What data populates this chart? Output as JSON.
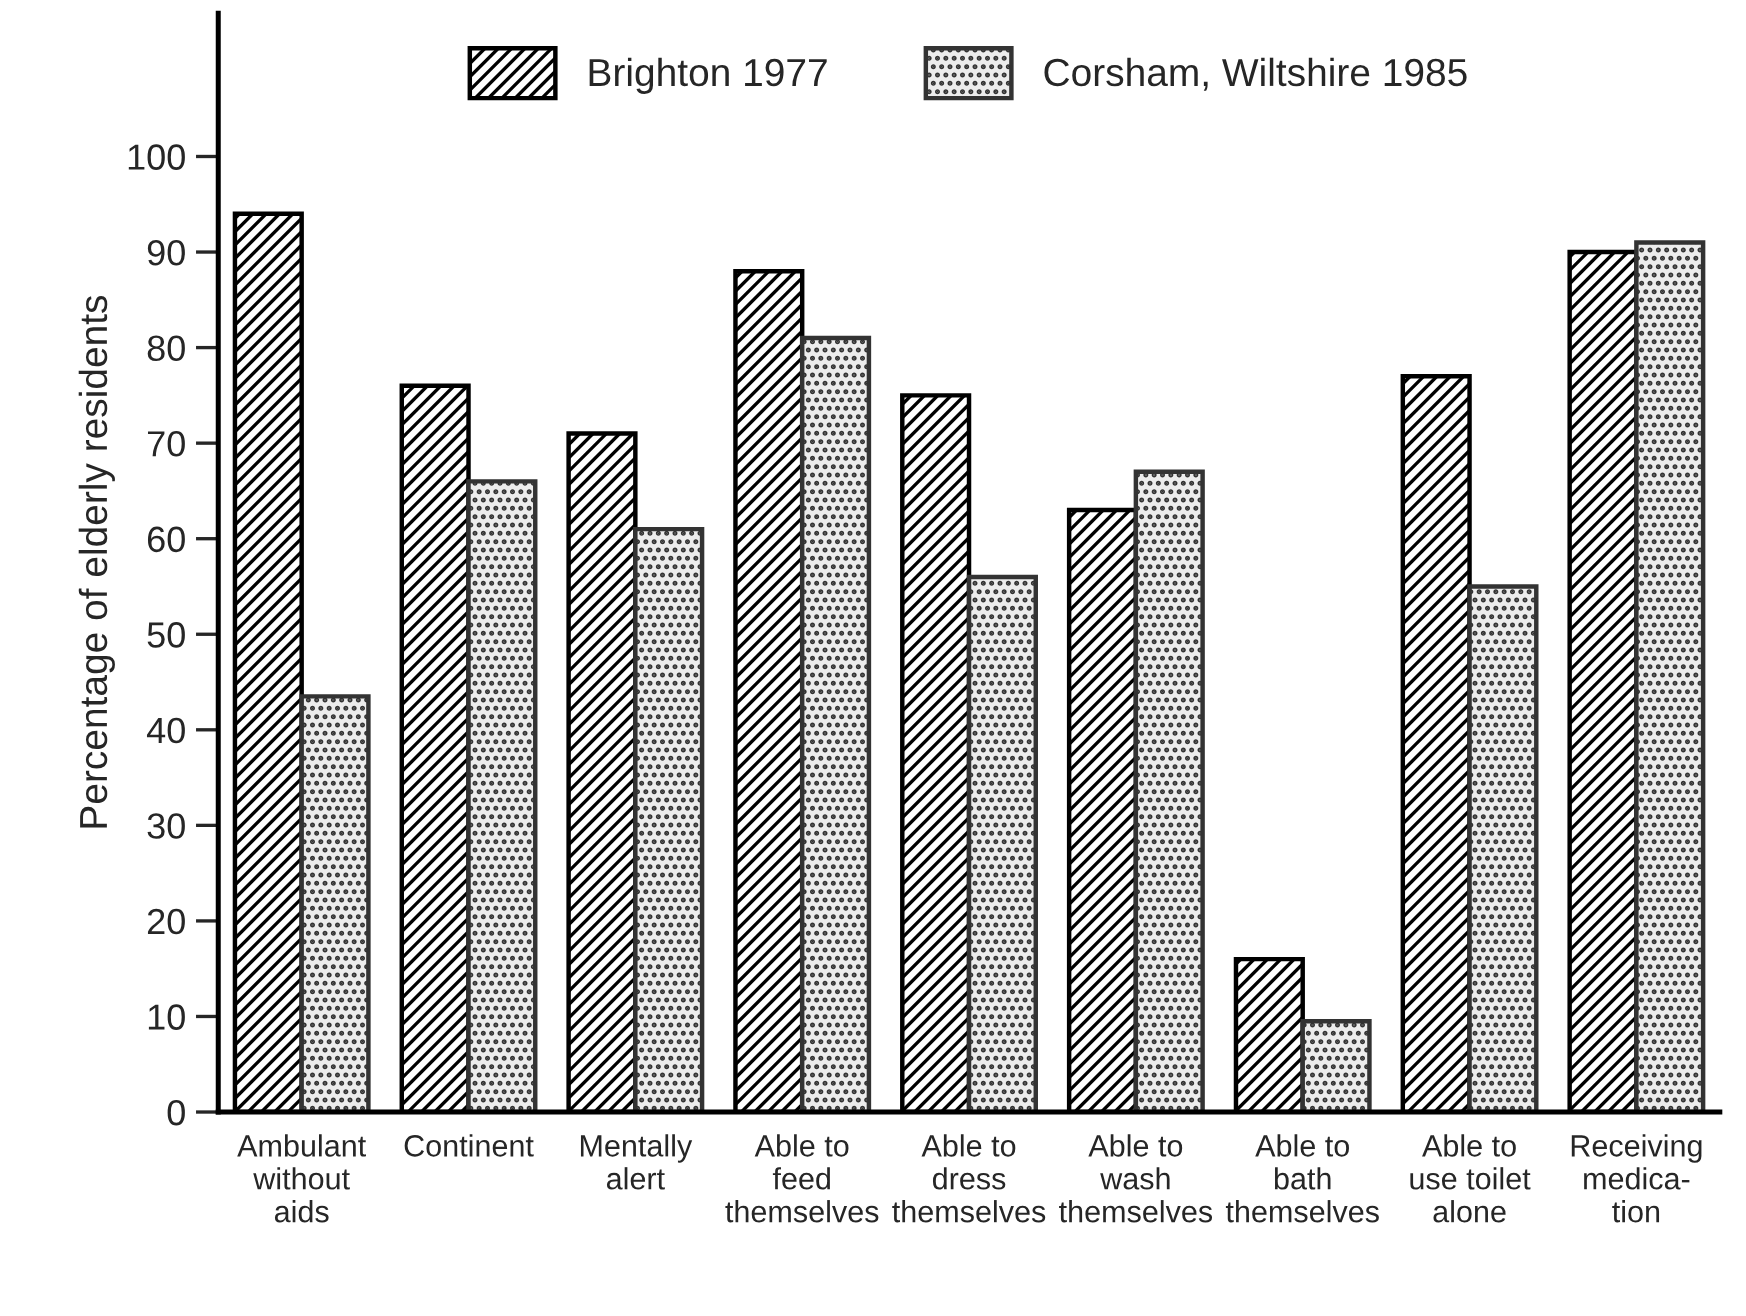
{
  "chart_data": {
    "type": "bar",
    "ylabel": "Percentage of elderly residents",
    "categories": [
      "Ambulant\nwithout\naids",
      "Continent",
      "Mentally\nalert",
      "Able to\nfeed\nthemselves",
      "Able to\ndress\nthemselves",
      "Able to\nwash\nthemselves",
      "Able to\nbath\nthemselves",
      "Able to\nuse toilet\nalone",
      "Receiving\nmedica-\ntion"
    ],
    "series": [
      {
        "name": "Brighton 1977",
        "color": "#000000",
        "values": [
          94,
          76,
          71,
          88,
          75,
          63,
          16,
          77,
          90
        ]
      },
      {
        "name": "Corsham, Wiltshire 1985",
        "color": "#333333",
        "values": [
          43.5,
          66,
          61,
          81,
          56,
          67,
          9.5,
          55,
          91
        ]
      }
    ],
    "ylim": [
      0,
      115
    ],
    "yticks": [
      0,
      10,
      20,
      30,
      40,
      50,
      60,
      70,
      80,
      90,
      100
    ],
    "grid": false,
    "legend": "top"
  }
}
